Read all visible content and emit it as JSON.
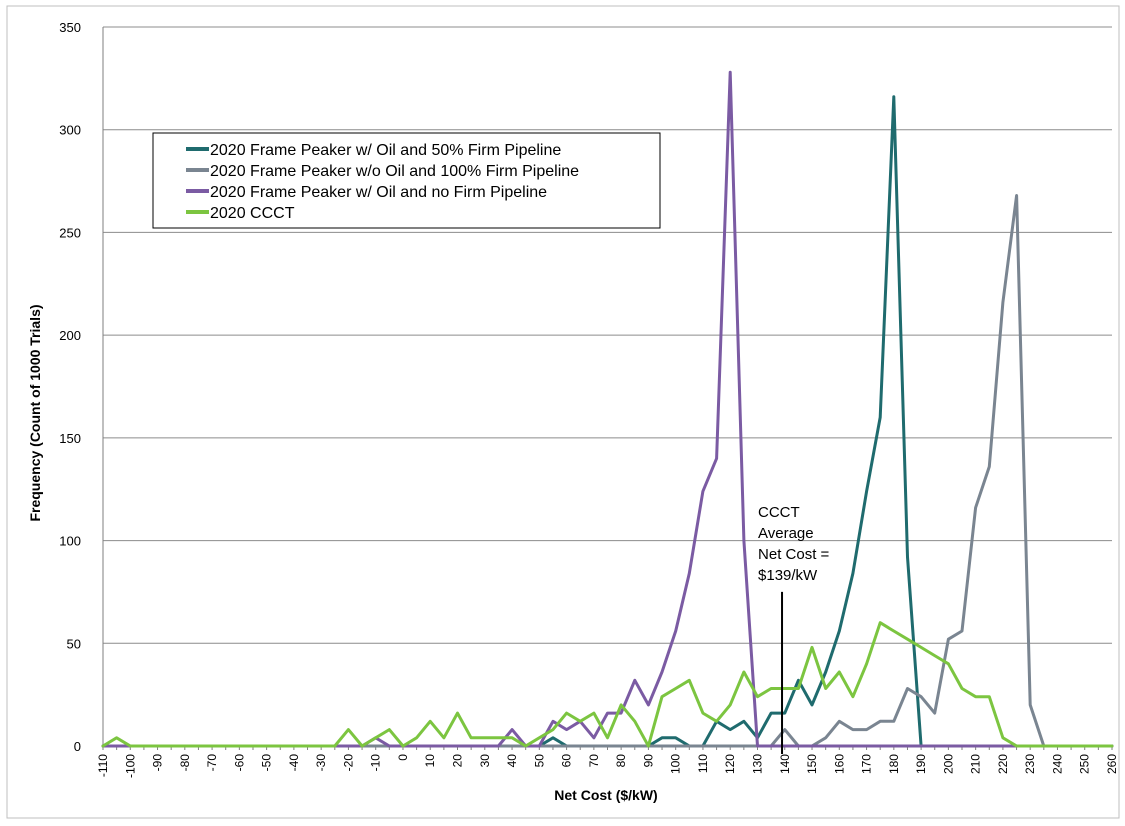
{
  "chart_data": {
    "type": "line",
    "xlabel": "Net Cost ($/kW)",
    "ylabel": "Frequency (Count of 1000 Trials)",
    "ylim": [
      0,
      350
    ],
    "yticks": [
      0,
      50,
      100,
      150,
      200,
      250,
      300,
      350
    ],
    "grid": "horizontal",
    "legend_position": "top-left",
    "x": [
      -110,
      -105,
      -100,
      -95,
      -90,
      -85,
      -80,
      -75,
      -70,
      -65,
      -60,
      -55,
      -50,
      -45,
      -40,
      -35,
      -30,
      -25,
      -20,
      -15,
      -10,
      -5,
      0,
      5,
      10,
      15,
      20,
      25,
      30,
      35,
      40,
      45,
      50,
      55,
      60,
      65,
      70,
      75,
      80,
      85,
      90,
      95,
      100,
      105,
      110,
      115,
      120,
      125,
      130,
      135,
      140,
      145,
      150,
      155,
      160,
      165,
      170,
      175,
      180,
      185,
      190,
      195,
      200,
      205,
      210,
      215,
      220,
      225,
      230,
      235,
      240,
      245,
      250,
      255,
      260
    ],
    "xtick_labels": [
      "-110",
      "-100",
      "-90",
      "-80",
      "-70",
      "-60",
      "-50",
      "-40",
      "-30",
      "-20",
      "-10",
      "0",
      "10",
      "20",
      "30",
      "40",
      "50",
      "60",
      "70",
      "80",
      "90",
      "100",
      "110",
      "120",
      "130",
      "140",
      "150",
      "160",
      "170",
      "180",
      "190",
      "200",
      "210",
      "220",
      "230",
      "240",
      "250",
      "260"
    ],
    "series": [
      {
        "name": "2020 Frame Peaker w/ Oil and 50% Firm Pipeline",
        "color": "#1f6b6e",
        "values": [
          0,
          0,
          0,
          0,
          0,
          0,
          0,
          0,
          0,
          0,
          0,
          0,
          0,
          0,
          0,
          0,
          0,
          0,
          0,
          0,
          0,
          0,
          0,
          0,
          0,
          0,
          0,
          0,
          0,
          0,
          0,
          0,
          0,
          4,
          0,
          0,
          0,
          0,
          0,
          0,
          0,
          4,
          4,
          0,
          0,
          12,
          8,
          12,
          4,
          16,
          16,
          32,
          20,
          36,
          56,
          84,
          124,
          160,
          316,
          92,
          0,
          0,
          0,
          0,
          0,
          0,
          0,
          0,
          0,
          0,
          0,
          0,
          0,
          0,
          0
        ]
      },
      {
        "name": "2020 Frame Peaker w/o Oil and 100% Firm Pipeline",
        "color": "#7a8591",
        "values": [
          0,
          0,
          0,
          0,
          0,
          0,
          0,
          0,
          0,
          0,
          0,
          0,
          0,
          0,
          0,
          0,
          0,
          0,
          0,
          0,
          0,
          0,
          0,
          0,
          0,
          0,
          0,
          0,
          0,
          0,
          0,
          0,
          0,
          0,
          0,
          0,
          0,
          0,
          0,
          0,
          0,
          0,
          0,
          0,
          0,
          0,
          0,
          0,
          0,
          0,
          8,
          0,
          0,
          4,
          12,
          8,
          8,
          12,
          12,
          28,
          24,
          16,
          52,
          56,
          116,
          136,
          216,
          268,
          20,
          0,
          0,
          0,
          0,
          0,
          0
        ]
      },
      {
        "name": "2020 Frame Peaker w/ Oil  and no Firm Pipeline",
        "color": "#7b5ba3",
        "values": [
          0,
          0,
          0,
          0,
          0,
          0,
          0,
          0,
          0,
          0,
          0,
          0,
          0,
          0,
          0,
          0,
          0,
          0,
          0,
          0,
          4,
          0,
          0,
          0,
          0,
          0,
          0,
          0,
          0,
          0,
          8,
          0,
          0,
          12,
          8,
          12,
          4,
          16,
          16,
          32,
          20,
          36,
          56,
          84,
          124,
          140,
          328,
          100,
          0,
          0,
          0,
          0,
          0,
          0,
          0,
          0,
          0,
          0,
          0,
          0,
          0,
          0,
          0,
          0,
          0,
          0,
          0,
          0,
          0,
          0,
          0,
          0,
          0,
          0,
          0
        ]
      },
      {
        "name": "2020 CCCT",
        "color": "#7cc540",
        "values": [
          0,
          4,
          0,
          0,
          0,
          0,
          0,
          0,
          0,
          0,
          0,
          0,
          0,
          0,
          0,
          0,
          0,
          0,
          8,
          0,
          4,
          8,
          0,
          4,
          12,
          4,
          16,
          4,
          4,
          4,
          4,
          0,
          4,
          8,
          16,
          12,
          16,
          4,
          20,
          12,
          0,
          24,
          28,
          32,
          16,
          12,
          20,
          36,
          24,
          28,
          28,
          28,
          48,
          28,
          36,
          24,
          40,
          60,
          56,
          52,
          48,
          44,
          40,
          28,
          24,
          24,
          4,
          0,
          0,
          0,
          0,
          0,
          0,
          0,
          0
        ]
      }
    ],
    "annotations": [
      {
        "text_lines": [
          "CCCT",
          "Average",
          "Net Cost =",
          "$139/kW"
        ],
        "x": 139,
        "line_top_y": 75
      }
    ]
  }
}
